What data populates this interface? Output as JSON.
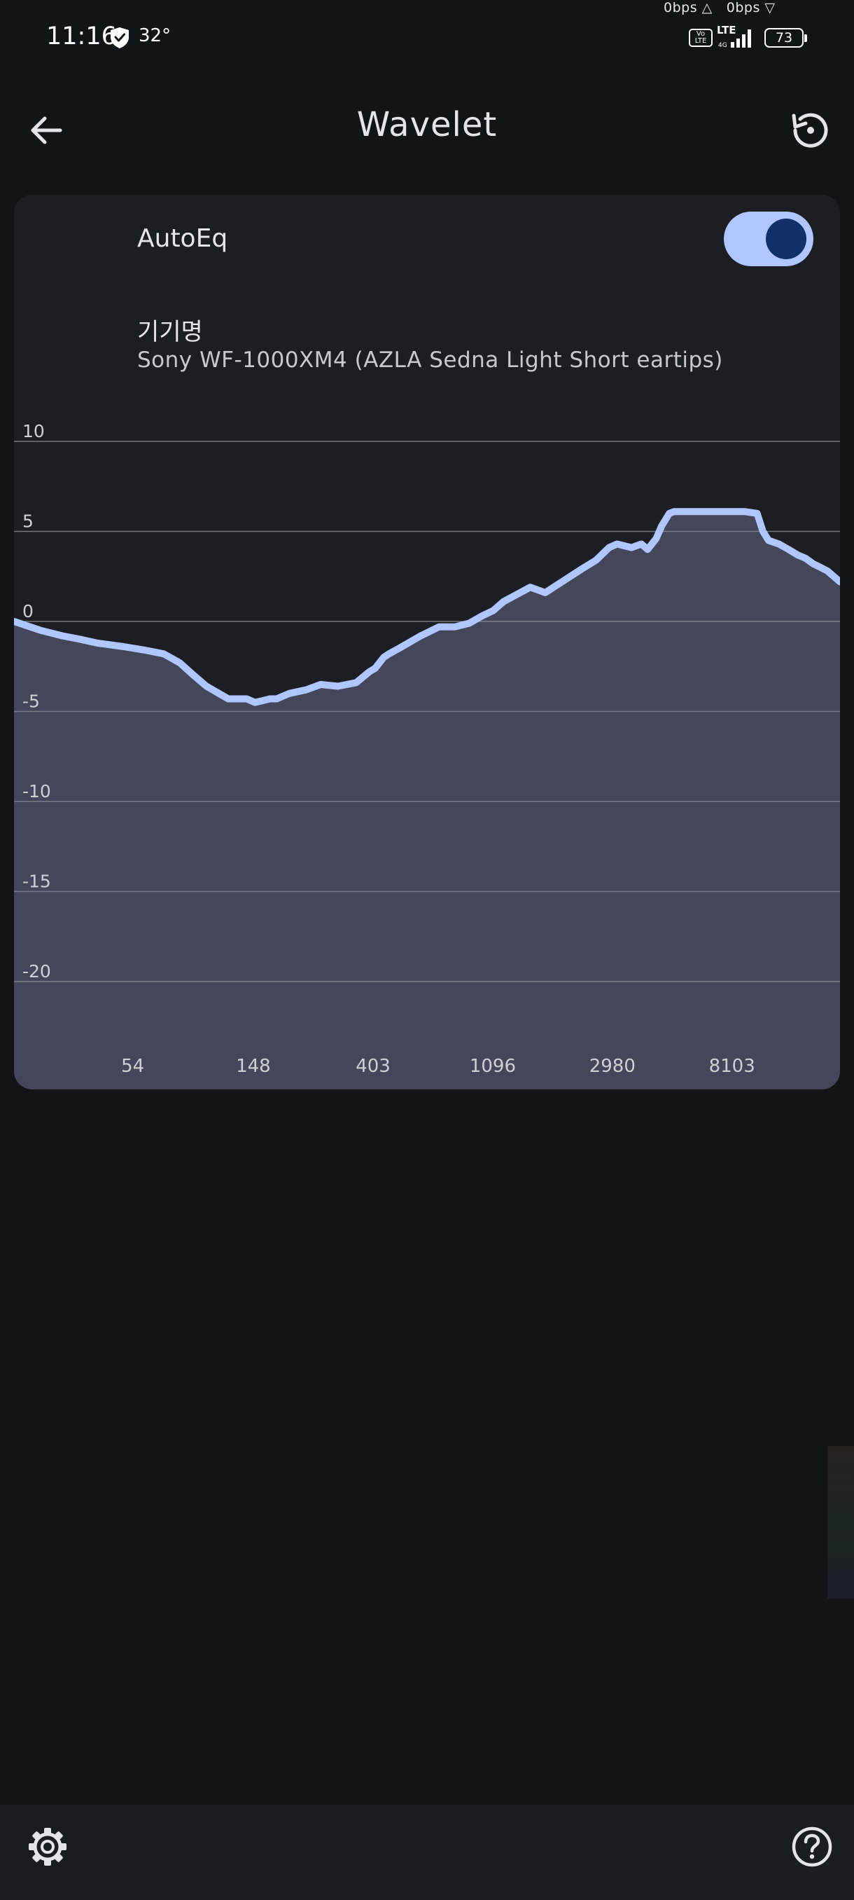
{
  "status_bar": {
    "time": "11:16",
    "temperature": "32°",
    "upload_speed": "0bps △",
    "download_speed": "0bps ▽",
    "volte_label": "Vo LTE",
    "network_type": "LTE",
    "battery_level": "73",
    "icons": [
      "shield-icon",
      "volte-icon",
      "signal-icon",
      "battery-icon"
    ]
  },
  "app_bar": {
    "title": "Wavelet",
    "back_icon": "arrow-back-icon",
    "reset_icon": "restore-icon"
  },
  "autoeq_card": {
    "toggle_label": "AutoEq",
    "toggle_on": true,
    "device_label": "기기명",
    "device_name": "Sony WF-1000XM4 (AZLA Sedna Light Short eartips)"
  },
  "chart_data": {
    "type": "area",
    "title": "",
    "xlabel": "",
    "ylabel": "",
    "x_scale": "log",
    "xlim": [
      20,
      20000
    ],
    "ylim": [
      -25,
      10
    ],
    "y_ticks": [
      10,
      5,
      0,
      -5,
      -10,
      -15,
      -20
    ],
    "y_tick_labels": [
      "10",
      "5",
      "0",
      "-5",
      "-10",
      "-15",
      "-20"
    ],
    "x_ticks": [
      54,
      148,
      403,
      1096,
      2980,
      8103
    ],
    "x_tick_labels": [
      "54",
      "148",
      "403",
      "1096",
      "2980",
      "8103"
    ],
    "grid": true,
    "legend": "none",
    "series": [
      {
        "x": [
          20,
          25,
          30,
          35,
          40,
          50,
          60,
          70,
          80,
          90,
          100,
          120,
          140,
          150,
          160,
          170,
          180,
          200,
          230,
          260,
          300,
          350,
          390,
          410,
          440,
          460,
          500,
          600,
          700,
          800,
          900,
          1000,
          1100,
          1200,
          1500,
          1700,
          2000,
          2300,
          2600,
          2900,
          3100,
          3500,
          3800,
          4000,
          4300,
          4500,
          4800,
          5000,
          5500,
          6000,
          7000,
          8000,
          9000,
          10000,
          10500,
          11000,
          12000,
          13000,
          14000,
          15000,
          16000,
          17000,
          18000,
          19000,
          20000
        ],
        "y": [
          0,
          -0.5,
          -0.8,
          -1.0,
          -1.2,
          -1.4,
          -1.6,
          -1.8,
          -2.3,
          -3.0,
          -3.6,
          -4.3,
          -4.3,
          -4.5,
          -4.4,
          -4.3,
          -4.3,
          -4.0,
          -3.8,
          -3.5,
          -3.6,
          -3.4,
          -2.8,
          -2.6,
          -2.0,
          -1.8,
          -1.5,
          -0.8,
          -0.3,
          -0.3,
          -0.1,
          0.3,
          0.6,
          1.1,
          1.9,
          1.6,
          2.3,
          2.9,
          3.4,
          4.1,
          4.3,
          4.1,
          4.3,
          4.0,
          4.6,
          5.3,
          6.0,
          6.1,
          6.1,
          6.1,
          6.1,
          6.1,
          6.1,
          6.0,
          5.0,
          4.5,
          4.3,
          4.0,
          3.7,
          3.5,
          3.2,
          3.0,
          2.8,
          2.5,
          2.2
        ],
        "line_color": "#afc6ff",
        "fill_color": "#434759"
      }
    ]
  },
  "bottom_bar": {
    "settings_icon": "gear-icon",
    "help_icon": "help-circle-icon"
  },
  "colors": {
    "background": "#131418",
    "card": "#1d1e23",
    "accent": "#afc6ff",
    "toggle_knob": "#14306a",
    "grid": "#8a8c96"
  }
}
